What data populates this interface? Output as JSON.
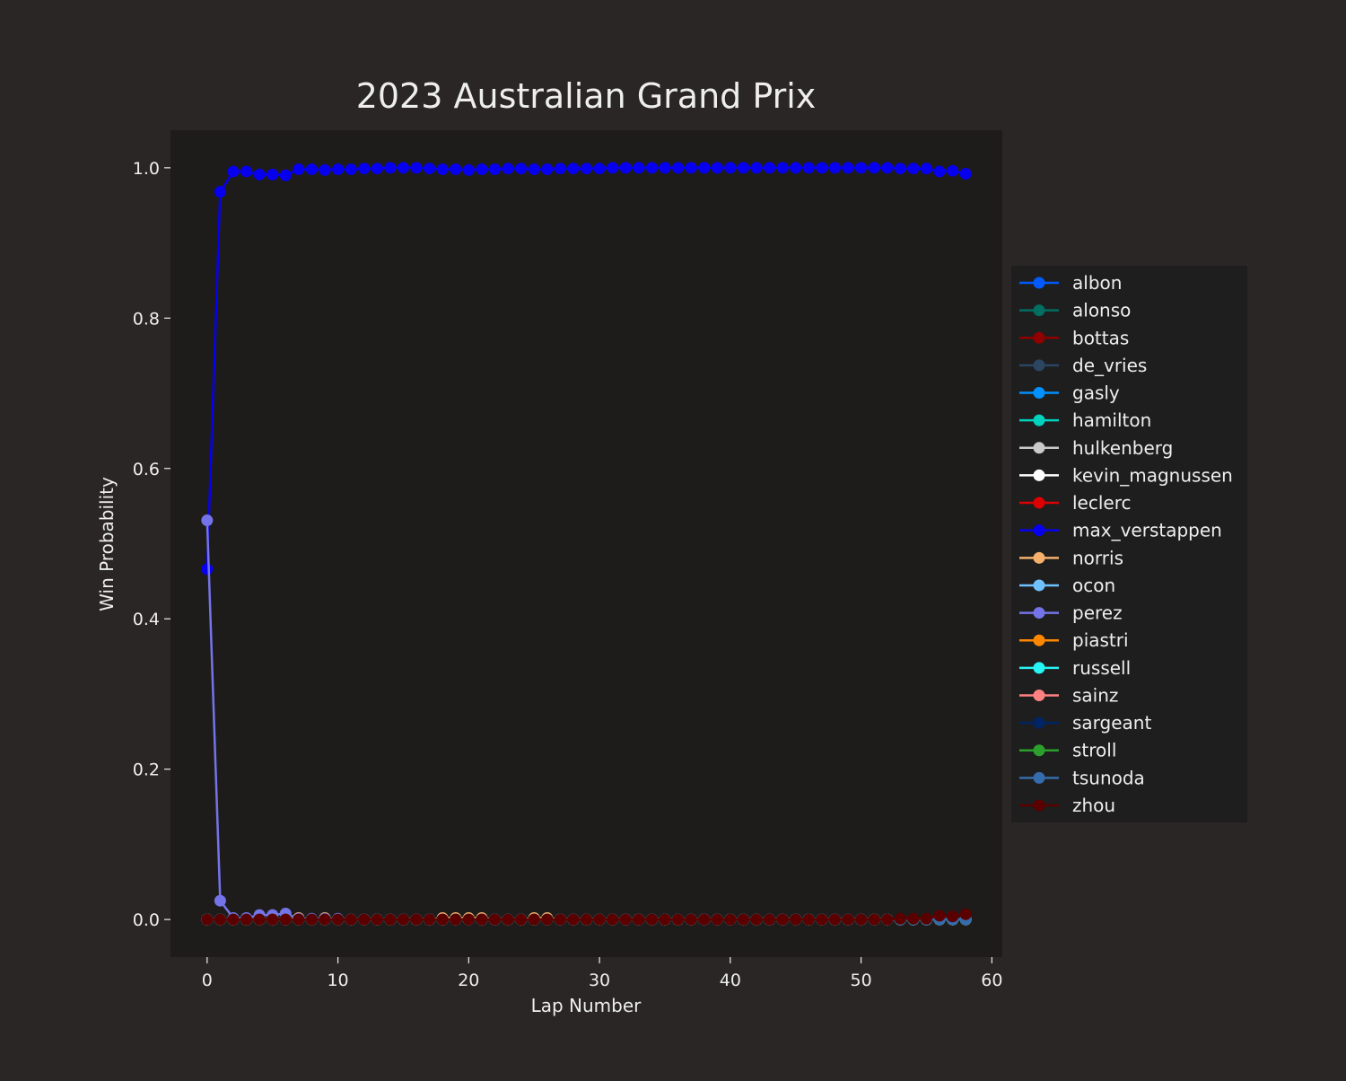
{
  "chart_data": {
    "type": "line",
    "title": "2023 Australian Grand Prix",
    "xlabel": "Lap Number",
    "ylabel": "Win Probability",
    "xlim": [
      -2.8,
      60.8
    ],
    "ylim": [
      -0.05,
      1.05
    ],
    "xticks": [
      0,
      10,
      20,
      30,
      40,
      50,
      60
    ],
    "yticks": [
      0.0,
      0.2,
      0.4,
      0.6,
      0.8,
      1.0
    ],
    "xtick_labels": [
      "0",
      "10",
      "20",
      "30",
      "40",
      "50",
      "60"
    ],
    "ytick_labels": [
      "0.0",
      "0.2",
      "0.4",
      "0.6",
      "0.8",
      "1.0"
    ],
    "grid": false,
    "legend_position": "right",
    "marker": "circle",
    "colors": {
      "figure_background": "#292625",
      "plot_background": "#1e1c1b",
      "legend_background": "#1e1e1e",
      "text": "#eeeeee"
    },
    "x": [
      0,
      1,
      2,
      3,
      4,
      5,
      6,
      7,
      8,
      9,
      10,
      11,
      12,
      13,
      14,
      15,
      16,
      17,
      18,
      19,
      20,
      21,
      22,
      23,
      24,
      25,
      26,
      27,
      28,
      29,
      30,
      31,
      32,
      33,
      34,
      35,
      36,
      37,
      38,
      39,
      40,
      41,
      42,
      43,
      44,
      45,
      46,
      47,
      48,
      49,
      50,
      51,
      52,
      53,
      54,
      55,
      56,
      57,
      58
    ],
    "series": [
      {
        "name": "albon",
        "color": "#005aff",
        "values": [
          0,
          0,
          0,
          0,
          0,
          0,
          0,
          0,
          0,
          0,
          0,
          0,
          0,
          0,
          0,
          0,
          0,
          0,
          0,
          0,
          0,
          0,
          0,
          0,
          0,
          0,
          0,
          0,
          0,
          0,
          0,
          0,
          0,
          0,
          0,
          0,
          0,
          0,
          0,
          0,
          0,
          0,
          0,
          0,
          0,
          0,
          0,
          0,
          0,
          0,
          0,
          0,
          0,
          0,
          0,
          0,
          0,
          0,
          0
        ]
      },
      {
        "name": "alonso",
        "color": "#006f62",
        "values": [
          0,
          0,
          0,
          0,
          0,
          0,
          0,
          0,
          0,
          0,
          0,
          0,
          0,
          0,
          0,
          0,
          0,
          0,
          0,
          0,
          0,
          0,
          0,
          0,
          0,
          0,
          0,
          0,
          0,
          0,
          0,
          0,
          0,
          0,
          0,
          0,
          0,
          0,
          0,
          0,
          0,
          0,
          0,
          0,
          0,
          0,
          0,
          0,
          0,
          0,
          0,
          0,
          0,
          0,
          0,
          0,
          0,
          0,
          0
        ]
      },
      {
        "name": "bottas",
        "color": "#900000",
        "values": [
          0,
          0,
          0,
          0,
          0,
          0,
          0,
          0,
          0,
          0,
          0,
          0,
          0,
          0,
          0,
          0,
          0,
          0,
          0,
          0,
          0,
          0,
          0,
          0,
          0,
          0,
          0,
          0,
          0,
          0,
          0,
          0,
          0,
          0,
          0,
          0,
          0,
          0,
          0,
          0,
          0,
          0,
          0,
          0,
          0,
          0,
          0,
          0,
          0,
          0,
          0,
          0,
          0,
          0,
          0,
          0,
          0,
          0,
          0
        ]
      },
      {
        "name": "de_vries",
        "color": "#2b4562",
        "values": [
          0,
          0,
          0,
          0,
          0,
          0,
          0,
          0,
          0,
          0,
          0,
          0,
          0,
          0,
          0,
          0,
          0,
          0,
          0,
          0,
          0,
          0,
          0,
          0,
          0,
          0,
          0,
          0,
          0,
          0,
          0,
          0,
          0,
          0,
          0,
          0,
          0,
          0,
          0,
          0,
          0,
          0,
          0,
          0,
          0,
          0,
          0,
          0,
          0,
          0,
          0,
          0,
          0,
          0,
          0,
          0,
          0,
          0,
          0
        ]
      },
      {
        "name": "gasly",
        "color": "#0090ff",
        "values": [
          0,
          0,
          0,
          0,
          0,
          0,
          0,
          0,
          0,
          0,
          0,
          0,
          0,
          0,
          0,
          0,
          0,
          0,
          0,
          0,
          0,
          0,
          0,
          0,
          0,
          0,
          0,
          0,
          0,
          0,
          0,
          0,
          0,
          0,
          0,
          0,
          0,
          0,
          0,
          0,
          0,
          0,
          0,
          0,
          0,
          0,
          0,
          0,
          0,
          0,
          0,
          0,
          0,
          0,
          0,
          0,
          0,
          0,
          0
        ]
      },
      {
        "name": "hamilton",
        "color": "#00d2be",
        "values": [
          0,
          0,
          0,
          0,
          0,
          0,
          0,
          0,
          0,
          0,
          0,
          0,
          0,
          0,
          0,
          0,
          0,
          0,
          0,
          0,
          0,
          0,
          0,
          0,
          0,
          0,
          0,
          0,
          0,
          0,
          0,
          0,
          0,
          0,
          0,
          0,
          0,
          0,
          0,
          0,
          0,
          0,
          0,
          0,
          0,
          0,
          0,
          0,
          0,
          0,
          0,
          0,
          0,
          0,
          0,
          0,
          0,
          0,
          0
        ]
      },
      {
        "name": "hulkenberg",
        "color": "#cacaca",
        "values": [
          0,
          0,
          0,
          0,
          0,
          0,
          0,
          0,
          0,
          0,
          0,
          0,
          0,
          0,
          0,
          0,
          0,
          0,
          0,
          0,
          0,
          0,
          0,
          0,
          0,
          0,
          0,
          0,
          0,
          0,
          0,
          0,
          0,
          0,
          0,
          0,
          0,
          0,
          0,
          0,
          0,
          0,
          0,
          0,
          0,
          0,
          0,
          0,
          0,
          0,
          0,
          0,
          0,
          0,
          0,
          0,
          0,
          0,
          0
        ]
      },
      {
        "name": "kevin_magnussen",
        "color": "#ffffff",
        "values": [
          0,
          0,
          0,
          0,
          0,
          0,
          0,
          0,
          0,
          0,
          0,
          0,
          0,
          0,
          0,
          0,
          0,
          0,
          0,
          0,
          0,
          0,
          0,
          0,
          0,
          0,
          0,
          0,
          0,
          0,
          0,
          0,
          0,
          0,
          0,
          0,
          0,
          0,
          0,
          0,
          0,
          0,
          0,
          0,
          0,
          0,
          0,
          0,
          0,
          0,
          0,
          0,
          0,
          0,
          0,
          0,
          0,
          0,
          0
        ]
      },
      {
        "name": "leclerc",
        "color": "#dc0000",
        "values": [
          0,
          0,
          0,
          0,
          0,
          0,
          0,
          0,
          0,
          0,
          0,
          0,
          0,
          0,
          0,
          0,
          0,
          0,
          0,
          0,
          0,
          0,
          0,
          0,
          0,
          0,
          0,
          0,
          0,
          0,
          0,
          0,
          0,
          0,
          0,
          0,
          0,
          0,
          0,
          0,
          0,
          0,
          0,
          0,
          0,
          0,
          0,
          0,
          0,
          0,
          0,
          0,
          0,
          0,
          0,
          0,
          0,
          0,
          0
        ]
      },
      {
        "name": "max_verstappen",
        "color": "#0600ef",
        "values": [
          0.466,
          0.968,
          0.995,
          0.995,
          0.991,
          0.991,
          0.99,
          0.998,
          0.998,
          0.997,
          0.998,
          0.998,
          0.999,
          0.999,
          1.0,
          1.0,
          1.0,
          0.999,
          0.998,
          0.998,
          0.997,
          0.998,
          0.998,
          0.999,
          0.999,
          0.998,
          0.998,
          0.999,
          0.999,
          0.999,
          0.999,
          1.0,
          1.0,
          1.0,
          1.0,
          1.0,
          1.0,
          1.0,
          1.0,
          1.0,
          1.0,
          1.0,
          1.0,
          1.0,
          1.0,
          1.0,
          1.0,
          1.0,
          1.0,
          1.0,
          1.0,
          1.0,
          1.0,
          0.999,
          0.999,
          0.999,
          0.995,
          0.996,
          0.992
        ]
      },
      {
        "name": "norris",
        "color": "#f5b06b",
        "values": [
          0,
          0,
          0,
          0,
          0,
          0,
          0,
          0.002,
          0,
          0.002,
          0,
          0,
          0,
          0,
          0,
          0,
          0,
          0,
          0.002,
          0.002,
          0.002,
          0.002,
          0,
          0,
          0,
          0.002,
          0.002,
          0,
          0,
          0,
          0,
          0,
          0,
          0,
          0,
          0,
          0,
          0,
          0,
          0,
          0,
          0,
          0,
          0,
          0,
          0,
          0,
          0,
          0,
          0,
          0,
          0,
          0,
          0,
          0,
          0,
          0,
          0,
          0
        ]
      },
      {
        "name": "ocon",
        "color": "#70c2ff",
        "values": [
          0,
          0,
          0,
          0,
          0,
          0,
          0,
          0,
          0,
          0,
          0,
          0,
          0,
          0,
          0,
          0,
          0,
          0,
          0,
          0,
          0,
          0,
          0,
          0,
          0,
          0,
          0,
          0,
          0,
          0,
          0,
          0,
          0,
          0,
          0,
          0,
          0,
          0,
          0,
          0,
          0,
          0,
          0,
          0,
          0,
          0,
          0,
          0,
          0,
          0,
          0,
          0,
          0,
          0,
          0,
          0,
          0,
          0,
          0
        ]
      },
      {
        "name": "perez",
        "color": "#7474e8",
        "values": [
          0.531,
          0.025,
          0.002,
          0.002,
          0.006,
          0.006,
          0.008,
          0.001,
          0.001,
          0.001,
          0.001,
          0,
          0,
          0,
          0,
          0,
          0,
          0,
          0,
          0,
          0,
          0,
          0,
          0,
          0,
          0,
          0,
          0,
          0,
          0,
          0,
          0,
          0,
          0,
          0,
          0,
          0,
          0,
          0,
          0,
          0,
          0,
          0,
          0,
          0,
          0,
          0,
          0,
          0,
          0,
          0,
          0,
          0,
          0,
          0,
          0,
          0,
          0,
          0
        ]
      },
      {
        "name": "piastri",
        "color": "#ff8700",
        "values": [
          0,
          0,
          0,
          0,
          0,
          0,
          0,
          0,
          0,
          0,
          0,
          0,
          0,
          0,
          0,
          0,
          0,
          0,
          0,
          0,
          0,
          0,
          0,
          0,
          0,
          0,
          0,
          0,
          0,
          0,
          0,
          0,
          0,
          0,
          0,
          0,
          0,
          0,
          0,
          0,
          0,
          0,
          0,
          0,
          0,
          0,
          0,
          0,
          0,
          0,
          0,
          0,
          0,
          0,
          0,
          0,
          0,
          0,
          0
        ]
      },
      {
        "name": "russell",
        "color": "#27f4f4",
        "values": [
          0,
          0,
          0,
          0,
          0,
          0,
          0,
          0,
          0,
          0,
          0,
          0,
          0,
          0,
          0,
          0,
          0,
          0,
          0,
          0,
          0,
          0,
          0,
          0,
          0,
          0,
          0,
          0,
          0,
          0,
          0,
          0,
          0,
          0,
          0,
          0,
          0,
          0,
          0,
          0,
          0,
          0,
          0,
          0,
          0,
          0,
          0,
          0,
          0,
          0,
          0,
          0,
          0,
          0,
          0,
          0,
          0,
          0,
          0
        ]
      },
      {
        "name": "sainz",
        "color": "#ff8181",
        "values": [
          0,
          0,
          0,
          0,
          0,
          0,
          0,
          0,
          0,
          0,
          0,
          0,
          0,
          0,
          0,
          0,
          0,
          0,
          0,
          0,
          0,
          0,
          0,
          0,
          0,
          0,
          0,
          0,
          0,
          0,
          0,
          0,
          0,
          0,
          0,
          0,
          0,
          0,
          0,
          0,
          0,
          0,
          0,
          0,
          0,
          0,
          0,
          0,
          0,
          0,
          0,
          0,
          0,
          0,
          0,
          0,
          0,
          0,
          0
        ]
      },
      {
        "name": "sargeant",
        "color": "#012564",
        "values": [
          0,
          0,
          0,
          0,
          0,
          0,
          0,
          0,
          0,
          0,
          0,
          0,
          0,
          0,
          0,
          0,
          0,
          0,
          0,
          0,
          0,
          0,
          0,
          0,
          0,
          0,
          0,
          0,
          0,
          0,
          0,
          0,
          0,
          0,
          0,
          0,
          0,
          0,
          0,
          0,
          0,
          0,
          0,
          0,
          0,
          0,
          0,
          0,
          0,
          0,
          0,
          0,
          0,
          0,
          0,
          0,
          0,
          0,
          0
        ]
      },
      {
        "name": "stroll",
        "color": "#2ca02c",
        "values": [
          0,
          0,
          0,
          0,
          0,
          0,
          0,
          0,
          0,
          0,
          0,
          0,
          0,
          0,
          0,
          0,
          0,
          0,
          0,
          0,
          0,
          0,
          0,
          0,
          0,
          0,
          0,
          0,
          0,
          0,
          0,
          0,
          0,
          0,
          0,
          0,
          0,
          0,
          0,
          0,
          0,
          0,
          0,
          0,
          0,
          0,
          0,
          0,
          0,
          0,
          0,
          0,
          0,
          0,
          0,
          0,
          0,
          0,
          0
        ]
      },
      {
        "name": "tsunoda",
        "color": "#356cac",
        "values": [
          0,
          0,
          0,
          0,
          0,
          0,
          0,
          0,
          0,
          0,
          0,
          0,
          0,
          0,
          0,
          0,
          0,
          0,
          0,
          0,
          0,
          0,
          0,
          0,
          0,
          0,
          0,
          0,
          0,
          0,
          0,
          0,
          0,
          0,
          0,
          0,
          0,
          0,
          0,
          0,
          0,
          0,
          0,
          0,
          0,
          0,
          0,
          0,
          0,
          0,
          0,
          0,
          0,
          0,
          0,
          0,
          0,
          0,
          0
        ]
      },
      {
        "name": "zhou",
        "color": "#5a0000",
        "values": [
          0,
          0,
          0,
          0,
          0,
          0,
          0,
          0,
          0,
          0,
          0,
          0,
          0,
          0,
          0,
          0,
          0,
          0,
          0,
          0,
          0,
          0,
          0,
          0,
          0,
          0,
          0,
          0,
          0,
          0,
          0,
          0,
          0,
          0,
          0,
          0,
          0,
          0,
          0,
          0,
          0,
          0,
          0,
          0,
          0,
          0,
          0,
          0,
          0,
          0,
          0,
          0,
          0,
          0.001,
          0.001,
          0.001,
          0.005,
          0.004,
          0.007
        ]
      }
    ]
  }
}
